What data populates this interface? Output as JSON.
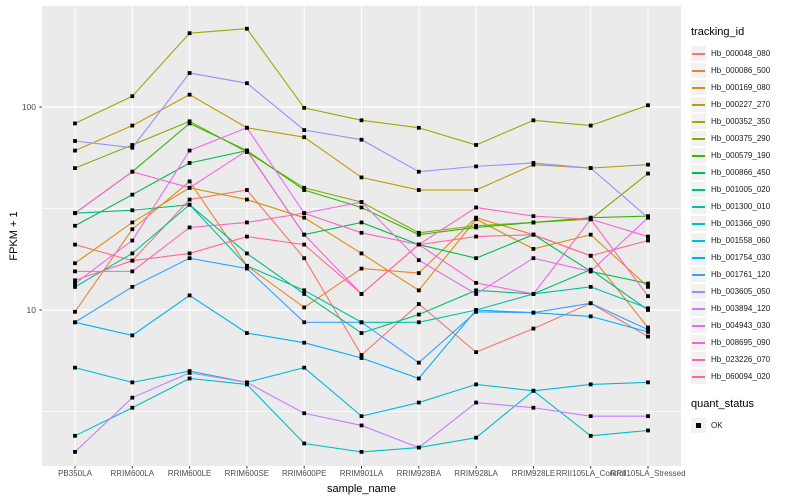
{
  "chart_data": {
    "type": "line",
    "title": "",
    "xlabel": "sample_name",
    "ylabel": "FPKM + 1",
    "y_scale": "log10",
    "y_ticks": [
      100,
      10
    ],
    "y_minor_ticks": [
      316.2,
      31.62,
      3.162
    ],
    "ylim": [
      1.75,
      320
    ],
    "grid": true,
    "panel_color": "#EBEBEB",
    "gridline_color": "#FFFFFF",
    "legend_position": "right",
    "legend_title": "tracking_id",
    "marker": {
      "legend_title": "quant_status",
      "label": "OK",
      "shape": "square",
      "color": "#000000"
    },
    "categories": [
      "PB350LA",
      "RRIM600LA",
      "RRIM600LE",
      "RRIM600SE",
      "RRIM600PE",
      "RRIM901LA",
      "RRIM928BA",
      "RRIM928LA",
      "RRIM928LE",
      "RRII105LA_Control",
      "RRII105LA_Stressed"
    ],
    "series": [
      {
        "name": "Hb_000048_080",
        "color": "#F8766D",
        "values": [
          21,
          17.5,
          35,
          39,
          18,
          6.0,
          10.7,
          6.2,
          8.1,
          10.8,
          7.4
        ]
      },
      {
        "name": "Hb_000086_500",
        "color": "#EA8331",
        "values": [
          9.8,
          25,
          43,
          16.5,
          10.3,
          16,
          15.2,
          28.5,
          23.5,
          18.5,
          8.2
        ]
      },
      {
        "name": "Hb_000169_080",
        "color": "#D89000",
        "values": [
          17,
          27,
          40,
          35,
          28.5,
          19,
          12.5,
          28,
          20,
          23.5,
          13
        ]
      },
      {
        "name": "Hb_000227_270",
        "color": "#C09B00",
        "values": [
          61,
          81,
          115,
          79,
          71,
          45,
          39,
          39,
          52,
          50,
          52
        ]
      },
      {
        "name": "Hb_000352_350",
        "color": "#A3A500",
        "values": [
          83,
          113,
          231,
          243,
          99,
          86,
          79,
          65,
          86,
          81,
          102
        ]
      },
      {
        "name": "Hb_000375_290",
        "color": "#7CAE00",
        "values": [
          50,
          65,
          85,
          60,
          40,
          34,
          24,
          26,
          27,
          28,
          47
        ]
      },
      {
        "name": "Hb_000579_190",
        "color": "#39B600",
        "values": [
          30,
          48,
          83,
          61,
          39,
          32,
          23.5,
          25.5,
          27,
          28.5,
          29
        ]
      },
      {
        "name": "Hb_000866_450",
        "color": "#00BB4E",
        "values": [
          26,
          37,
          53,
          61,
          23.5,
          27,
          21,
          18,
          23.5,
          15.5,
          13.5
        ]
      },
      {
        "name": "Hb_001005_020",
        "color": "#00BF7D",
        "values": [
          30,
          31,
          33,
          19,
          12,
          7.7,
          9.5,
          12.5,
          12,
          15.8,
          10
        ]
      },
      {
        "name": "Hb_001300_010",
        "color": "#00C1A3",
        "values": [
          13,
          19,
          33,
          16.5,
          12.5,
          8.7,
          8.7,
          10,
          12,
          13,
          10.2
        ]
      },
      {
        "name": "Hb_001366_090",
        "color": "#00BFC4",
        "values": [
          2.4,
          3.3,
          4.6,
          4.3,
          2.2,
          2.0,
          2.1,
          2.35,
          4.0,
          2.4,
          2.55
        ]
      },
      {
        "name": "Hb_001558_060",
        "color": "#00BAE0",
        "values": [
          5.2,
          4.4,
          5.0,
          4.4,
          5.2,
          3.0,
          3.5,
          4.3,
          4.0,
          4.3,
          4.4
        ]
      },
      {
        "name": "Hb_001754_030",
        "color": "#00B0F6",
        "values": [
          8.7,
          7.5,
          11.8,
          7.7,
          6.9,
          5.8,
          4.6,
          10,
          9.7,
          9.3,
          7.8
        ]
      },
      {
        "name": "Hb_001761_120",
        "color": "#35A2FF",
        "values": [
          8.7,
          13,
          18,
          16,
          8.7,
          8.7,
          5.5,
          9.8,
          9.7,
          10.8,
          8.0
        ]
      },
      {
        "name": "Hb_003605_050",
        "color": "#9590FF",
        "values": [
          68,
          63,
          147,
          131,
          77,
          69,
          48,
          51,
          53,
          50,
          28.5
        ]
      },
      {
        "name": "Hb_003894_120",
        "color": "#C77CFF",
        "values": [
          2.0,
          3.7,
          4.9,
          4.4,
          3.1,
          2.7,
          2.1,
          3.5,
          3.3,
          3.0,
          3.0
        ]
      },
      {
        "name": "Hb_004943_030",
        "color": "#E76BF3",
        "values": [
          13.5,
          22,
          61,
          79,
          30,
          34,
          17.6,
          12,
          18,
          15.5,
          28.5
        ]
      },
      {
        "name": "Hb_008695_090",
        "color": "#FA62DB",
        "values": [
          30,
          48,
          40,
          61,
          23.5,
          12,
          21,
          13.6,
          12,
          28,
          23
        ]
      },
      {
        "name": "Hb_023226_070",
        "color": "#FF62BC",
        "values": [
          15.5,
          15.5,
          25.5,
          27,
          30,
          24,
          21,
          32,
          29,
          28,
          11.7
        ]
      },
      {
        "name": "Hb_060094_020",
        "color": "#FF6A98",
        "values": [
          14,
          17.5,
          19,
          23,
          21,
          12,
          21,
          23,
          23.5,
          18.5,
          22
        ]
      }
    ]
  }
}
